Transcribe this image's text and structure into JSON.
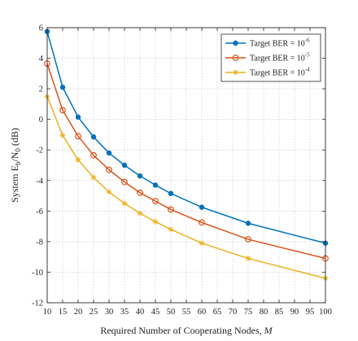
{
  "chart_data": {
    "type": "line",
    "xlabel": {
      "text": "Required Number of Cooperating Nodes,",
      "symbol": "M"
    },
    "ylabel": {
      "prefix": "System E",
      "sub1": "b",
      "middle": "/N",
      "sub2": "0",
      "suffix": " (dB)"
    },
    "xlim": [
      10,
      100
    ],
    "ylim": [
      -12,
      6
    ],
    "xticks": [
      10,
      15,
      20,
      25,
      30,
      35,
      40,
      45,
      50,
      55,
      60,
      65,
      70,
      75,
      80,
      85,
      90,
      95,
      100
    ],
    "yticks": [
      -12,
      -10,
      -8,
      -6,
      -4,
      -2,
      0,
      2,
      4,
      6
    ],
    "grid": true,
    "legend_position": "top-right",
    "x": [
      10,
      15,
      20,
      25,
      30,
      35,
      40,
      45,
      50,
      60,
      75,
      100
    ],
    "series": [
      {
        "legend_base": "Target BER = 10",
        "legend_exp": "-6",
        "color": "#0072BD",
        "marker": "dot",
        "values": [
          5.75,
          2.1,
          0.15,
          -1.15,
          -2.2,
          -3.0,
          -3.7,
          -4.3,
          -4.85,
          -5.75,
          -6.8,
          -8.1
        ]
      },
      {
        "legend_base": "Target BER = 10",
        "legend_exp": "-5",
        "color": "#D95319",
        "marker": "circle",
        "values": [
          3.65,
          0.6,
          -1.1,
          -2.35,
          -3.3,
          -4.1,
          -4.8,
          -5.35,
          -5.9,
          -6.75,
          -7.85,
          -9.1
        ]
      },
      {
        "legend_base": "Target BER = 10",
        "legend_exp": "-4",
        "color": "#EDB120",
        "marker": "star",
        "values": [
          1.5,
          -1.05,
          -2.65,
          -3.8,
          -4.75,
          -5.5,
          -6.15,
          -6.7,
          -7.2,
          -8.1,
          -9.1,
          -10.4
        ]
      }
    ]
  }
}
